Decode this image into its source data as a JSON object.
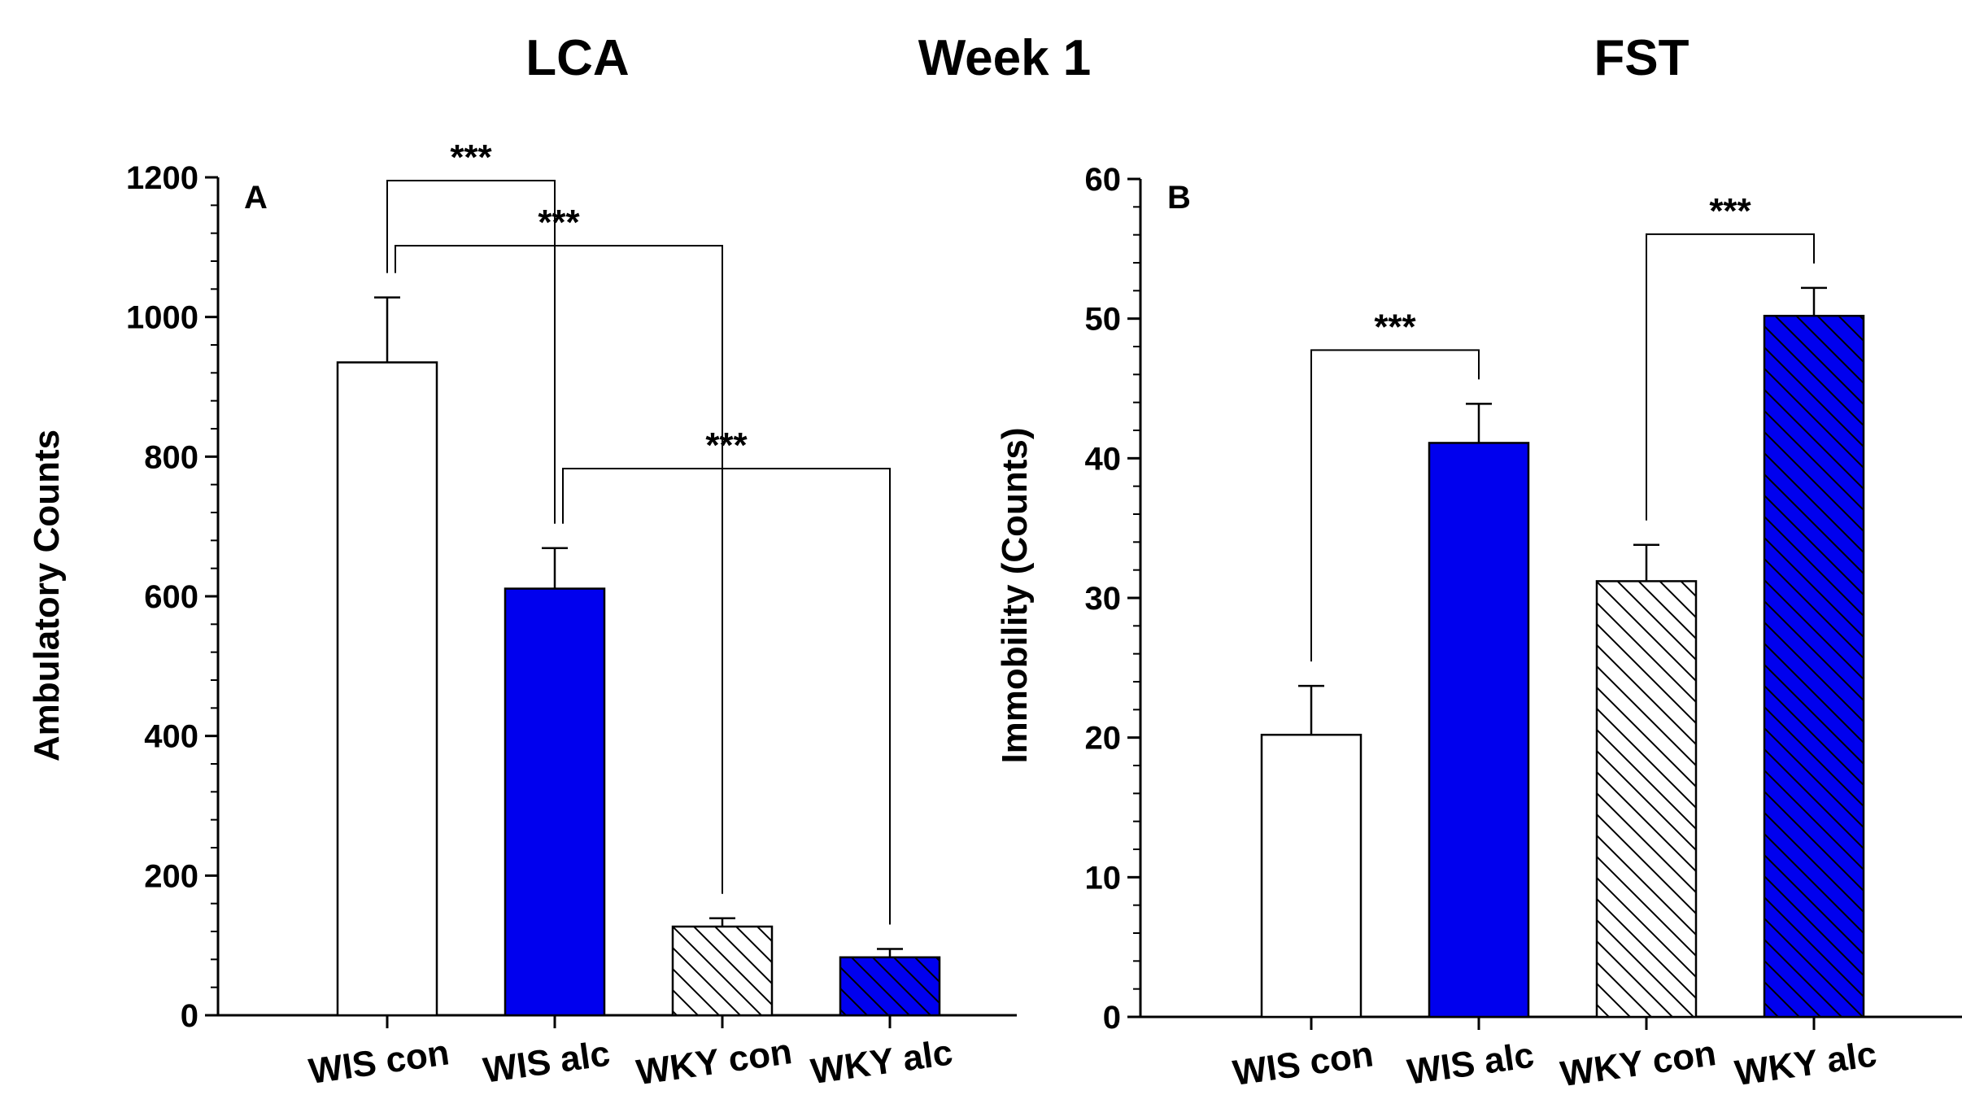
{
  "figure": {
    "center_title": "Week 1",
    "colors": {
      "alc": "#0000ee",
      "con": "#ffffff",
      "line": "#000000"
    }
  },
  "chart_data": [
    {
      "type": "bar",
      "title": "LCA",
      "panel_letter": "A",
      "xlabel": "",
      "ylabel": "Ambulatory Counts",
      "ylim": [
        0,
        1200
      ],
      "yticks": [
        0,
        200,
        400,
        600,
        800,
        1000,
        1200
      ],
      "minor_ticks_per_major": 5,
      "categories": [
        "WIS con",
        "WIS alc",
        "WKY con",
        "WKY alc"
      ],
      "values": [
        935,
        611,
        127,
        83
      ],
      "errors": [
        93,
        58,
        12,
        12
      ],
      "fills": [
        "white",
        "blue",
        "hatch",
        "blue-hatch"
      ],
      "significance": [
        {
          "from": 0,
          "to": 1,
          "label": "***",
          "level": "top"
        },
        {
          "from": 0,
          "to": 2,
          "label": "***",
          "level": "mid"
        },
        {
          "from": 1,
          "to": 3,
          "label": "***",
          "level": "low"
        }
      ]
    },
    {
      "type": "bar",
      "title": "FST",
      "panel_letter": "B",
      "xlabel": "",
      "ylabel": "Immobility (Counts)",
      "ylim": [
        0,
        60
      ],
      "yticks": [
        0,
        10,
        20,
        30,
        40,
        50,
        60
      ],
      "minor_ticks_per_major": 5,
      "categories": [
        "WIS con",
        "WIS alc",
        "WKY con",
        "WKY alc"
      ],
      "values": [
        20.2,
        41.1,
        31.2,
        50.2
      ],
      "errors": [
        3.5,
        2.8,
        2.6,
        2.0
      ],
      "fills": [
        "white",
        "blue",
        "hatch",
        "blue-hatch"
      ],
      "significance": [
        {
          "from": 0,
          "to": 1,
          "label": "***",
          "level": "low"
        },
        {
          "from": 2,
          "to": 3,
          "label": "***",
          "level": "low"
        }
      ]
    }
  ]
}
